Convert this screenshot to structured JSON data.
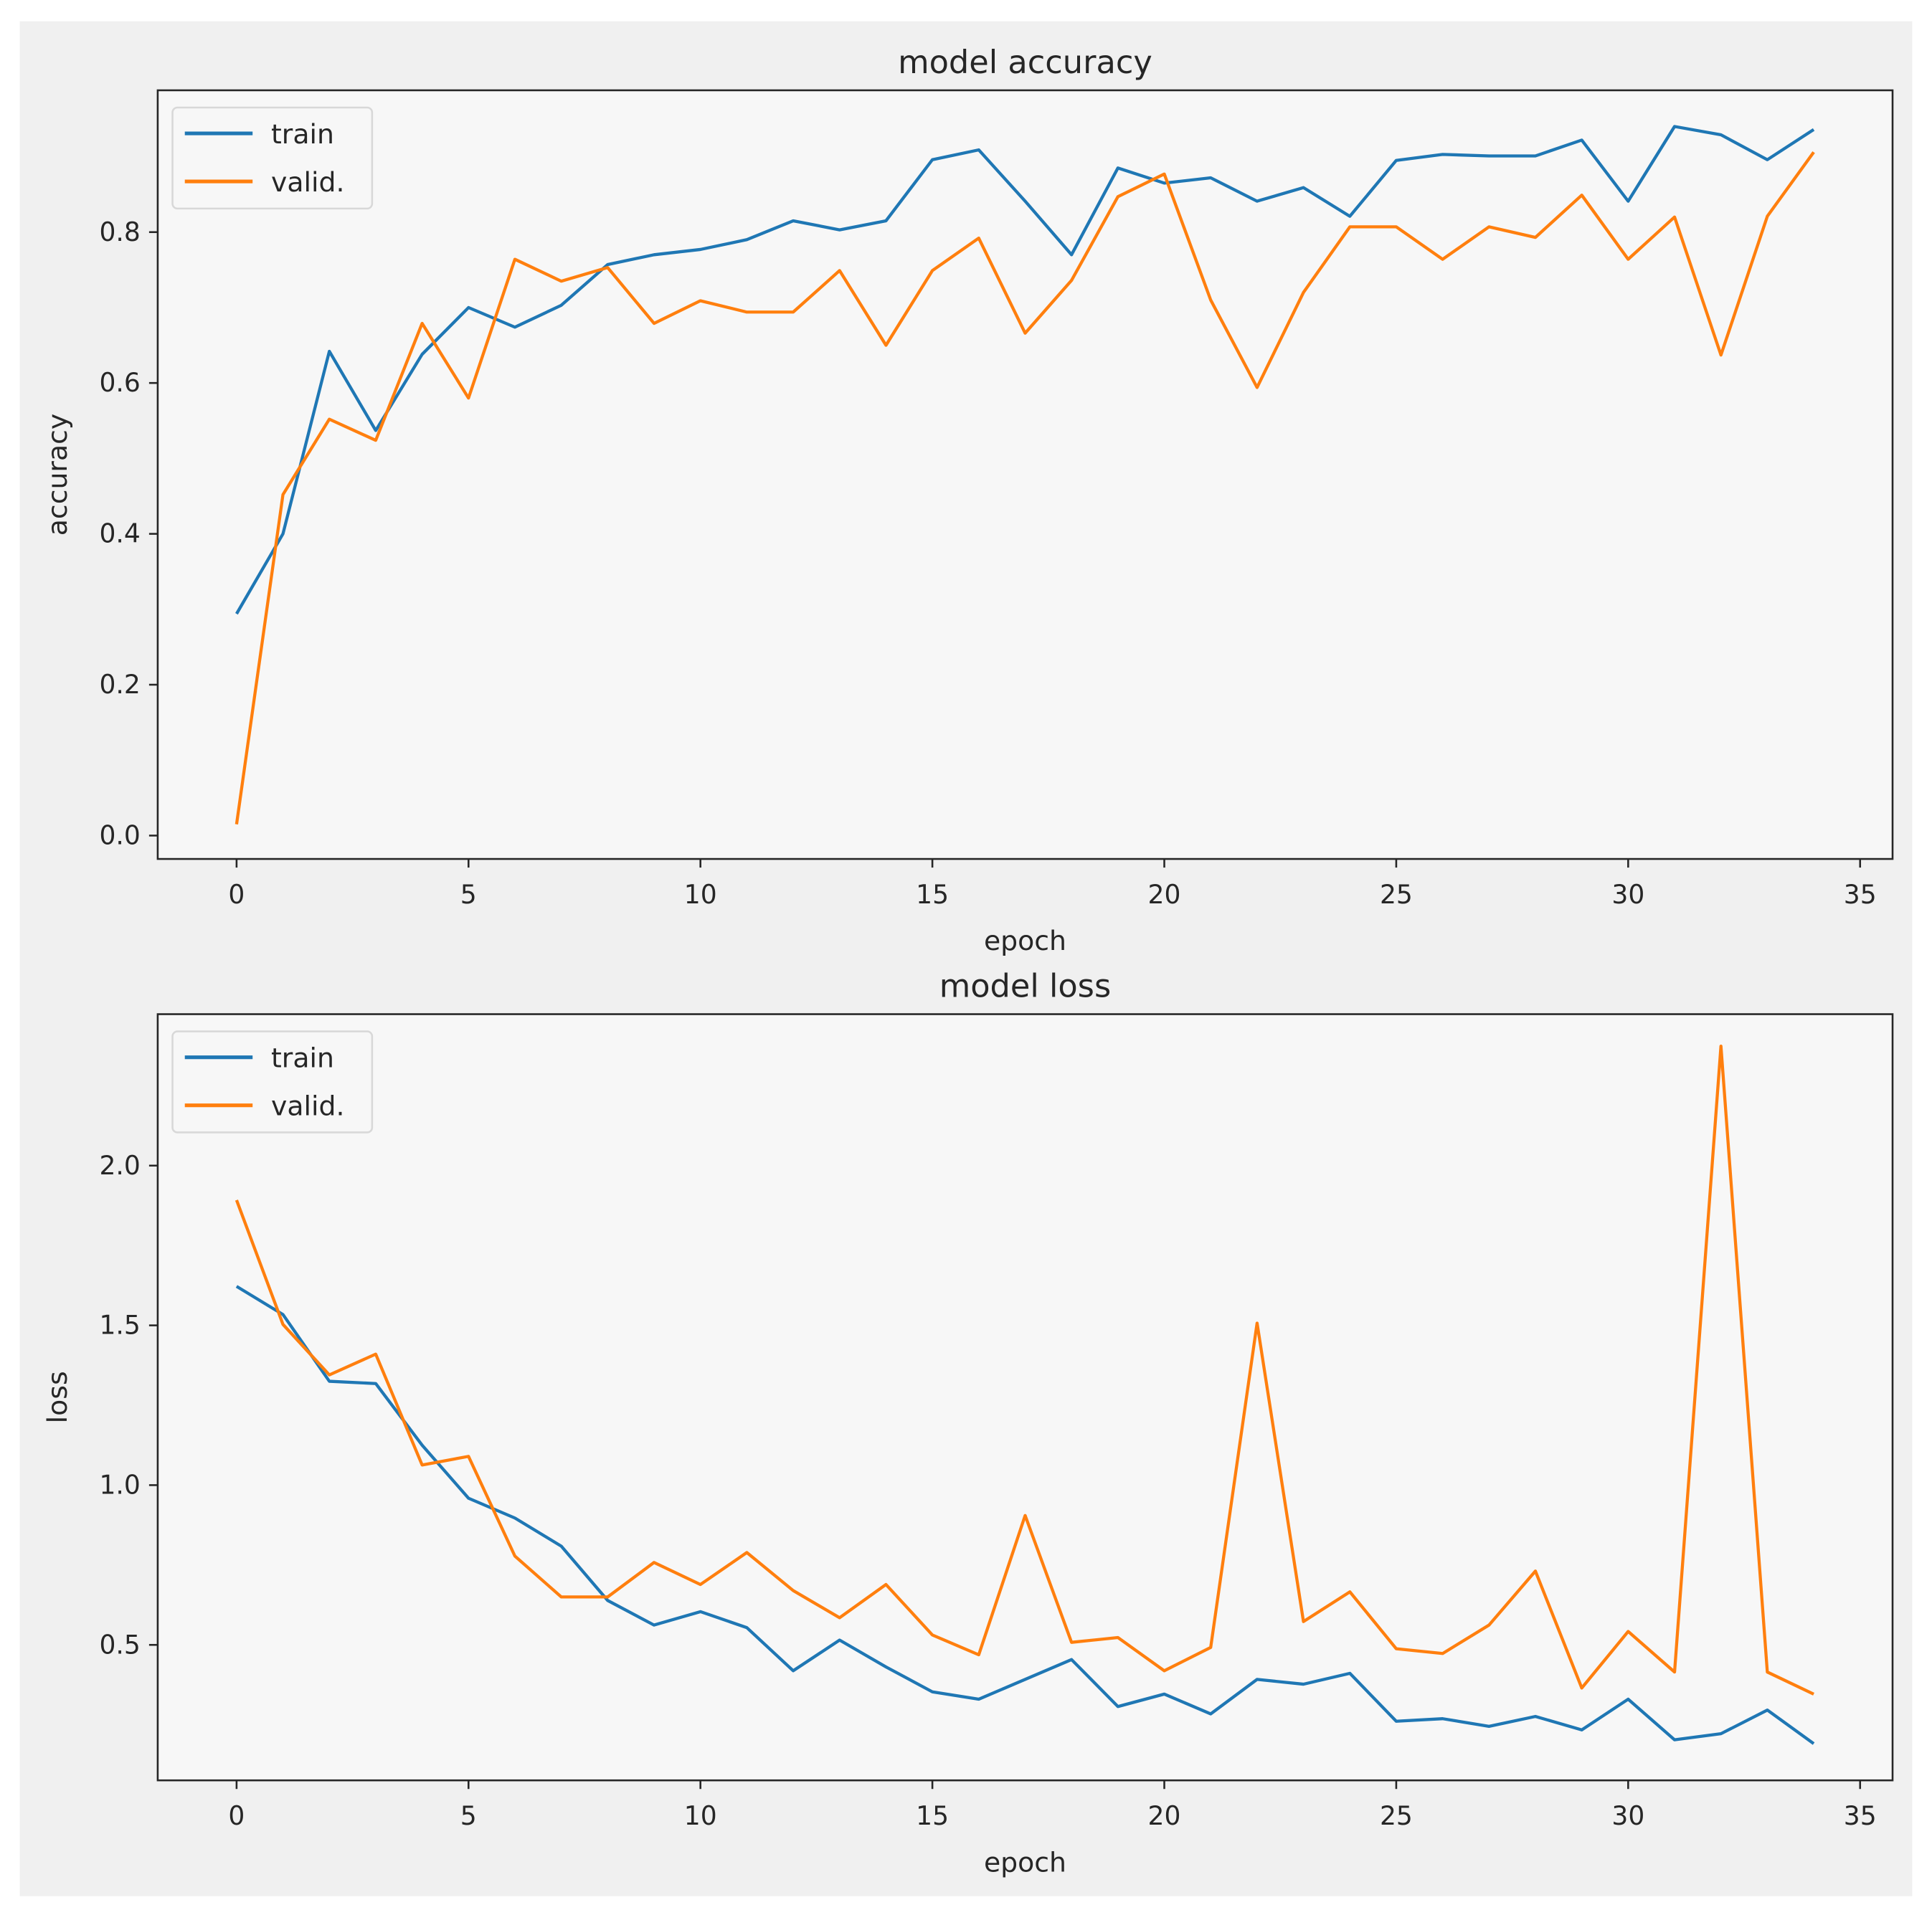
{
  "chart_data": [
    {
      "type": "line",
      "title": "model accuracy",
      "xlabel": "epoch",
      "ylabel": "accuracy",
      "x": [
        0,
        1,
        2,
        3,
        4,
        5,
        6,
        7,
        8,
        9,
        10,
        11,
        12,
        13,
        14,
        15,
        16,
        17,
        18,
        19,
        20,
        21,
        22,
        23,
        24,
        25,
        26,
        27,
        28,
        29,
        30,
        31,
        32,
        33,
        34
      ],
      "series": [
        {
          "name": "train",
          "color": "#1f77b4",
          "values": [
            0.294,
            0.4,
            0.642,
            0.537,
            0.638,
            0.7,
            0.674,
            0.703,
            0.757,
            0.77,
            0.777,
            0.79,
            0.815,
            0.803,
            0.815,
            0.896,
            0.909,
            0.841,
            0.77,
            0.885,
            0.865,
            0.872,
            0.841,
            0.859,
            0.821,
            0.895,
            0.903,
            0.901,
            0.901,
            0.922,
            0.841,
            0.94,
            0.929,
            0.896,
            0.936
          ]
        },
        {
          "name": "valid.",
          "color": "#ff7f0e",
          "values": [
            0.015,
            0.452,
            0.552,
            0.524,
            0.679,
            0.58,
            0.764,
            0.735,
            0.753,
            0.679,
            0.709,
            0.694,
            0.694,
            0.749,
            0.65,
            0.749,
            0.792,
            0.666,
            0.736,
            0.847,
            0.877,
            0.71,
            0.594,
            0.72,
            0.807,
            0.807,
            0.764,
            0.807,
            0.793,
            0.849,
            0.764,
            0.82,
            0.637,
            0.821,
            0.906
          ]
        }
      ],
      "xlim": [
        -1.7,
        35.7
      ],
      "xticks": [
        0,
        5,
        10,
        15,
        20,
        25,
        30,
        35
      ],
      "ylim": [
        -0.031,
        0.988
      ],
      "yticks": [
        {
          "value": 0,
          "label": "0.0"
        },
        0.2,
        0.4,
        0.6,
        0.8
      ],
      "legend": "upper left",
      "grid": false
    },
    {
      "type": "line",
      "title": "model loss",
      "xlabel": "epoch",
      "ylabel": "loss",
      "x": [
        0,
        1,
        2,
        3,
        4,
        5,
        6,
        7,
        8,
        9,
        10,
        11,
        12,
        13,
        14,
        15,
        16,
        17,
        18,
        19,
        20,
        21,
        22,
        23,
        24,
        25,
        26,
        27,
        28,
        29,
        30,
        31,
        32,
        33,
        34
      ],
      "series": [
        {
          "name": "train",
          "color": "#1f77b4",
          "values": [
            1.622,
            1.534,
            1.325,
            1.318,
            1.125,
            0.959,
            0.897,
            0.809,
            0.639,
            0.562,
            0.604,
            0.554,
            0.419,
            0.515,
            0.431,
            0.353,
            0.33,
            0.392,
            0.454,
            0.307,
            0.346,
            0.284,
            0.392,
            0.377,
            0.411,
            0.261,
            0.269,
            0.245,
            0.276,
            0.234,
            0.33,
            0.203,
            0.222,
            0.296,
            0.191
          ]
        },
        {
          "name": "valid.",
          "color": "#ff7f0e",
          "values": [
            1.892,
            1.503,
            1.345,
            1.41,
            1.063,
            1.09,
            0.778,
            0.65,
            0.65,
            0.758,
            0.689,
            0.789,
            0.67,
            0.585,
            0.689,
            0.531,
            0.469,
            0.905,
            0.508,
            0.523,
            0.419,
            0.492,
            1.507,
            0.573,
            0.666,
            0.488,
            0.473,
            0.562,
            0.731,
            0.365,
            0.542,
            0.415,
            2.374,
            0.415,
            0.346
          ]
        }
      ],
      "xlim": [
        -1.7,
        35.7
      ],
      "xticks": [
        0,
        5,
        10,
        15,
        20,
        25,
        30,
        35
      ],
      "ylim": [
        0.076,
        2.474
      ],
      "yticks": [
        0.5,
        {
          "value": 1,
          "label": "1.0"
        },
        1.5,
        {
          "value": 2,
          "label": "2.0"
        }
      ],
      "legend": "upper left",
      "grid": false
    }
  ]
}
